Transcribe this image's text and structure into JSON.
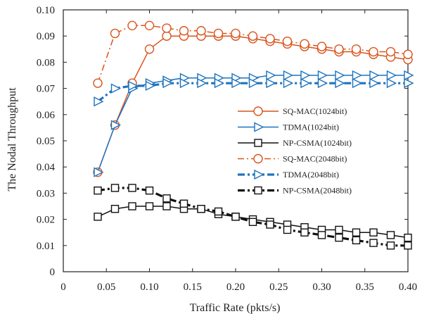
{
  "chart_data": {
    "type": "line",
    "title": "",
    "xlabel": "Traffic Rate (pkts/s)",
    "ylabel": "The Nodal Throughput",
    "xlim": [
      0,
      0.4
    ],
    "ylim": [
      0,
      0.1
    ],
    "xticks": [
      0,
      0.05,
      0.1,
      0.15,
      0.2,
      0.25,
      0.3,
      0.35,
      0.4
    ],
    "xtick_labels": [
      "0",
      "0.05",
      "0.10",
      "0.15",
      "0.20",
      "0.25",
      "0.30",
      "0.35",
      "0.40"
    ],
    "yticks": [
      0,
      0.01,
      0.02,
      0.03,
      0.04,
      0.05,
      0.06,
      0.07,
      0.08,
      0.09,
      0.1
    ],
    "ytick_labels": [
      "0",
      "0.01",
      "0.02",
      "0.03",
      "0.04",
      "0.05",
      "0.06",
      "0.07",
      "0.08",
      "0.09",
      "0.10"
    ],
    "grid": false,
    "legend_position": "center-right",
    "x": [
      0.04,
      0.06,
      0.08,
      0.1,
      0.12,
      0.14,
      0.16,
      0.18,
      0.2,
      0.22,
      0.24,
      0.26,
      0.28,
      0.3,
      0.32,
      0.34,
      0.36,
      0.38,
      0.4
    ],
    "series": [
      {
        "name": "SQ-MAC(1024bit)",
        "color": "#d9541c",
        "marker": "circle",
        "line": "solid",
        "values": [
          0.038,
          0.056,
          0.072,
          0.085,
          0.09,
          0.09,
          0.09,
          0.09,
          0.09,
          0.089,
          0.088,
          0.087,
          0.086,
          0.085,
          0.084,
          0.084,
          0.083,
          0.082,
          0.081
        ]
      },
      {
        "name": "TDMA(1024bit)",
        "color": "#1e73be",
        "marker": "triangle-right",
        "line": "solid",
        "values": [
          0.038,
          0.056,
          0.07,
          0.072,
          0.073,
          0.074,
          0.074,
          0.074,
          0.074,
          0.074,
          0.075,
          0.075,
          0.075,
          0.075,
          0.075,
          0.075,
          0.075,
          0.075,
          0.075
        ]
      },
      {
        "name": "NP-CSMA(1024bit)",
        "color": "#111111",
        "marker": "square",
        "line": "solid",
        "values": [
          0.021,
          0.024,
          0.025,
          0.025,
          0.025,
          0.024,
          0.024,
          0.022,
          0.021,
          0.02,
          0.019,
          0.018,
          0.017,
          0.016,
          0.016,
          0.015,
          0.015,
          0.014,
          0.013
        ]
      },
      {
        "name": "SQ-MAC(2048bit)",
        "color": "#d9541c",
        "marker": "circle",
        "line": "dashdot",
        "values": [
          0.072,
          0.091,
          0.094,
          0.094,
          0.093,
          0.092,
          0.092,
          0.091,
          0.091,
          0.09,
          0.089,
          0.088,
          0.087,
          0.086,
          0.085,
          0.085,
          0.084,
          0.084,
          0.083
        ]
      },
      {
        "name": "TDMA(2048bit)",
        "color": "#1e73be",
        "marker": "triangle-right",
        "line": "dashdot-thick",
        "values": [
          0.065,
          0.07,
          0.071,
          0.071,
          0.072,
          0.072,
          0.072,
          0.072,
          0.072,
          0.072,
          0.072,
          0.072,
          0.072,
          0.072,
          0.072,
          0.072,
          0.072,
          0.072,
          0.072
        ]
      },
      {
        "name": "NP-CSMA(2048bit)",
        "color": "#111111",
        "marker": "square",
        "line": "dashdot-thick",
        "values": [
          0.031,
          0.032,
          0.032,
          0.031,
          0.028,
          0.026,
          0.024,
          0.023,
          0.021,
          0.019,
          0.018,
          0.016,
          0.015,
          0.014,
          0.013,
          0.012,
          0.011,
          0.01,
          0.01
        ]
      }
    ]
  }
}
